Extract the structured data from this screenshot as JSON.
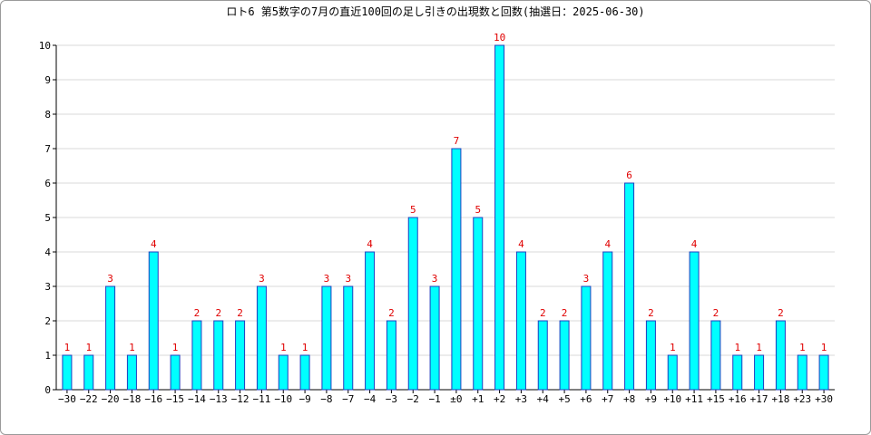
{
  "chart_data": {
    "type": "bar",
    "title": "ロト6 第5数字の7月の直近100回の足し引きの出現数と回数(抽選日：2025-06-30)",
    "xlabel": "",
    "ylabel": "",
    "ylim": [
      0,
      10
    ],
    "yticks": [
      "0",
      "1",
      "2",
      "3",
      "4",
      "5",
      "6",
      "7",
      "8",
      "9",
      "10"
    ],
    "grid": true,
    "legend": "none",
    "colors": {
      "bar_fill": "#00ffff",
      "bar_stroke": "#1f3fbf",
      "label": "#e00000",
      "grid": "#d8d8d8"
    },
    "categories": [
      "−30",
      "−22",
      "−20",
      "−18",
      "−16",
      "−15",
      "−14",
      "−13",
      "−12",
      "−11",
      "−10",
      "−9",
      "−8",
      "−7",
      "−4",
      "−3",
      "−2",
      "−1",
      "±0",
      "+1",
      "+2",
      "+3",
      "+4",
      "+5",
      "+6",
      "+7",
      "+8",
      "+9",
      "+10",
      "+11",
      "+15",
      "+16",
      "+17",
      "+18",
      "+23",
      "+30"
    ],
    "values": [
      1,
      1,
      3,
      1,
      4,
      1,
      2,
      2,
      2,
      3,
      1,
      1,
      3,
      3,
      4,
      2,
      5,
      3,
      7,
      5,
      10,
      4,
      2,
      2,
      3,
      4,
      6,
      2,
      1,
      4,
      2,
      1,
      1,
      2,
      1,
      1
    ],
    "data_labels": [
      "1",
      "1",
      "3",
      "1",
      "4",
      "1",
      "2",
      "2",
      "2",
      "3",
      "1",
      "1",
      "3",
      "3",
      "4",
      "2",
      "5",
      "3",
      "7",
      "5",
      "10",
      "4",
      "2",
      "2",
      "3",
      "4",
      "6",
      "2",
      "1",
      "4",
      "2",
      "1",
      "1",
      "2",
      "1",
      "1"
    ]
  }
}
